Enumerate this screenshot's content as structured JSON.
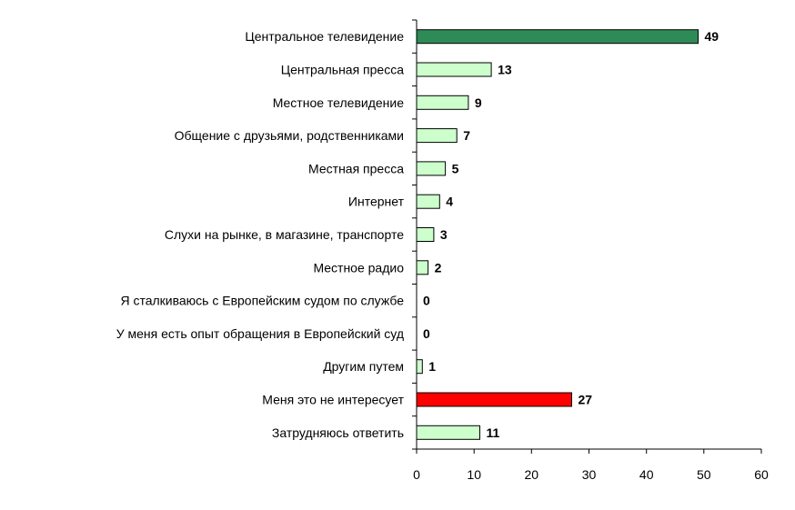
{
  "chart_data": {
    "type": "bar",
    "orientation": "horizontal",
    "categories": [
      "Центральное телевидение",
      "Центральная пресса",
      "Местное телевидение",
      "Общение с друзьями, родственниками",
      "Местная пресса",
      "Интернет",
      "Слухи на рынке, в магазине, транспорте",
      "Местное радио",
      "Я сталкиваюсь с Европейским судом по службе",
      "У меня есть опыт обращения в Европейский суд",
      "Другим путем",
      "Меня это не интересует",
      "Затрудняюсь ответить"
    ],
    "values": [
      49,
      13,
      9,
      7,
      5,
      4,
      3,
      2,
      0,
      0,
      1,
      27,
      11
    ],
    "value_labels": [
      "49",
      "13",
      "9",
      "7",
      "5",
      "4",
      "3",
      "2",
      "0",
      "0",
      "1",
      "27",
      "11"
    ],
    "bar_colors": [
      "#2e8b57",
      "#ccffcc",
      "#ccffcc",
      "#ccffcc",
      "#ccffcc",
      "#ccffcc",
      "#ccffcc",
      "#ccffcc",
      "#ccffcc",
      "#ccffcc",
      "#ccffcc",
      "#ff0000",
      "#ccffcc"
    ],
    "xlim": [
      0,
      60
    ],
    "xticks": [
      0,
      10,
      20,
      30,
      40,
      50,
      60
    ],
    "title": "",
    "xlabel": "",
    "ylabel": "",
    "grid": false,
    "legend": "none"
  }
}
